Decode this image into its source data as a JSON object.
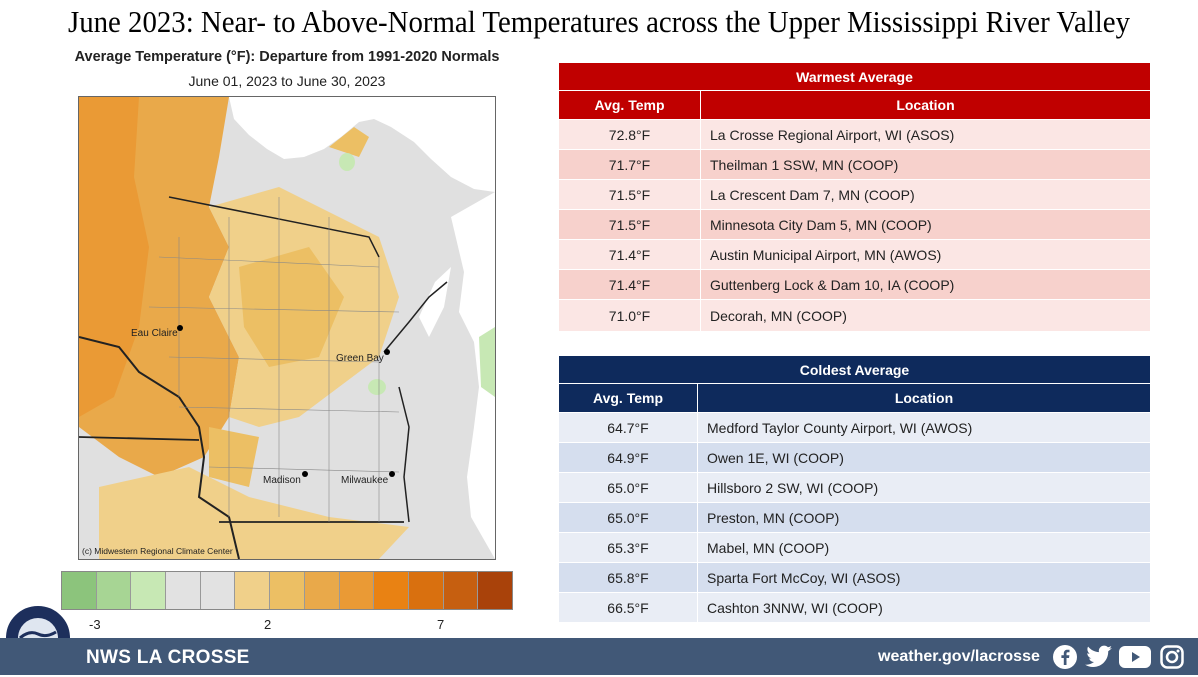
{
  "title": "June 2023:  Near- to Above-Normal Temperatures across the Upper Mississippi River Valley",
  "map": {
    "title": "Average Temperature (°F): Departure from 1991-2020 Normals",
    "subtitle": "June 01, 2023 to June 30, 2023",
    "credit": "(c) Midwestern Regional Climate Center",
    "cities": [
      "Eau Claire",
      "Green Bay",
      "Madison",
      "Milwaukee"
    ],
    "legend_colors": [
      "#8cc47c",
      "#a7d594",
      "#c7e8b4",
      "#e2e2e2",
      "#e2e2e2",
      "#f0d08a",
      "#ecbf64",
      "#e9a94a",
      "#ea9a35",
      "#e98213",
      "#d9700f",
      "#c65f10",
      "#a9420a"
    ],
    "legend_labels": [
      "-3",
      "2",
      "7"
    ]
  },
  "warmest": {
    "title": "Warmest  Average",
    "headers": [
      "Avg. Temp",
      "Location"
    ],
    "rows": [
      {
        "temp": "72.8°F",
        "loc": "La Crosse Regional Airport, WI (ASOS)"
      },
      {
        "temp": "71.7°F",
        "loc": "Theilman 1 SSW, MN (COOP)"
      },
      {
        "temp": "71.5°F",
        "loc": "La Crescent Dam 7, MN (COOP)"
      },
      {
        "temp": "71.5°F",
        "loc": "Minnesota City Dam 5, MN (COOP)"
      },
      {
        "temp": "71.4°F",
        "loc": "Austin Municipal Airport, MN (AWOS)"
      },
      {
        "temp": "71.4°F",
        "loc": "Guttenberg Lock & Dam 10, IA (COOP)"
      },
      {
        "temp": "71.0°F",
        "loc": "Decorah, MN (COOP)"
      }
    ],
    "colors": {
      "header": "#c00000",
      "row_light": "#fbe6e4",
      "row_dark": "#f7d1cc"
    }
  },
  "coldest": {
    "title": "Coldest Average",
    "headers": [
      "Avg. Temp",
      "Location"
    ],
    "rows": [
      {
        "temp": "64.7°F",
        "loc": "Medford Taylor County Airport, WI (AWOS)"
      },
      {
        "temp": "64.9°F",
        "loc": "Owen 1E, WI (COOP)"
      },
      {
        "temp": "65.0°F",
        "loc": "Hillsboro 2 SW, WI (COOP)"
      },
      {
        "temp": "65.0°F",
        "loc": "Preston, MN (COOP)"
      },
      {
        "temp": "65.3°F",
        "loc": "Mabel, MN (COOP)"
      },
      {
        "temp": "65.8°F",
        "loc": "Sparta Fort McCoy, WI (ASOS)"
      },
      {
        "temp": "66.5°F",
        "loc": "Cashton 3NNW, WI (COOP)"
      }
    ],
    "colors": {
      "header": "#0e2a5c",
      "row_light": "#e9edf5",
      "row_dark": "#d5deee"
    }
  },
  "footer": {
    "name": "NWS LA CROSSE",
    "url": "weather.gov/lacrosse",
    "icons": [
      "facebook-icon",
      "twitter-icon",
      "youtube-icon",
      "instagram-icon"
    ],
    "color": "#415877"
  }
}
